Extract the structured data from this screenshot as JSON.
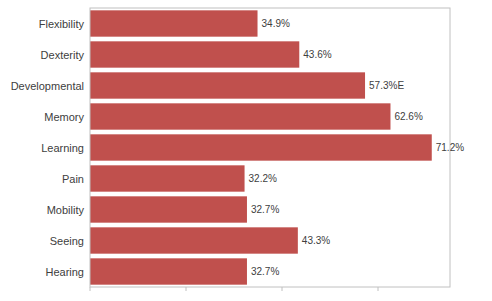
{
  "chart_data": {
    "type": "bar",
    "orientation": "horizontal",
    "categories": [
      "Hearing",
      "Seeing",
      "Mobility",
      "Pain",
      "Learning",
      "Memory",
      "Developmental",
      "Dexterity",
      "Flexibility"
    ],
    "values": [
      32.7,
      43.3,
      32.7,
      32.2,
      71.2,
      62.6,
      57.3,
      43.6,
      34.9
    ],
    "value_labels": [
      "32.7%",
      "43.3%",
      "32.7%",
      "32.2%",
      "71.2%",
      "62.6%",
      "57.3%E",
      "43.6%",
      "34.9%"
    ],
    "data_labels": true,
    "color": "#c0504d",
    "xlim": [
      0,
      75
    ],
    "xticks": [
      0,
      20,
      40,
      60
    ],
    "tick_labels": "y"
  }
}
